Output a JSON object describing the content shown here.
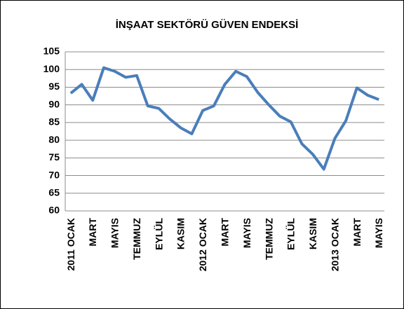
{
  "chart_data": {
    "type": "line",
    "title": "İNŞAAT SEKTÖRÜ GÜVEN ENDEKSİ",
    "categories": [
      "2011 OCAK",
      null,
      "MART",
      null,
      "MAYIS",
      null,
      "TEMMUZ",
      null,
      "EYLÜL",
      null,
      "KASIM",
      null,
      "2012 OCAK",
      null,
      "MART",
      null,
      "MAYIS",
      null,
      "TEMMUZ",
      null,
      "EYLÜL",
      null,
      "KASIM",
      null,
      "2013 OCAK",
      null,
      "MART",
      null,
      "MAYIS"
    ],
    "series": [
      {
        "name": "İnşaat Sektörü Güven Endeksi",
        "color": "#4a7ebb",
        "values": [
          93.3,
          95.8,
          91.3,
          100.5,
          99.5,
          97.8,
          98.3,
          89.7,
          89,
          86,
          83.5,
          81.8,
          88.4,
          89.7,
          95.8,
          99.5,
          98,
          93.5,
          90,
          86.8,
          85.2,
          79,
          76,
          71.8,
          80.5,
          85.5,
          94.8,
          92.7,
          91.5
        ]
      }
    ],
    "ylim": [
      60,
      105
    ],
    "yticks": [
      60,
      65,
      70,
      75,
      80,
      85,
      90,
      95,
      100,
      105
    ],
    "grid": true
  }
}
